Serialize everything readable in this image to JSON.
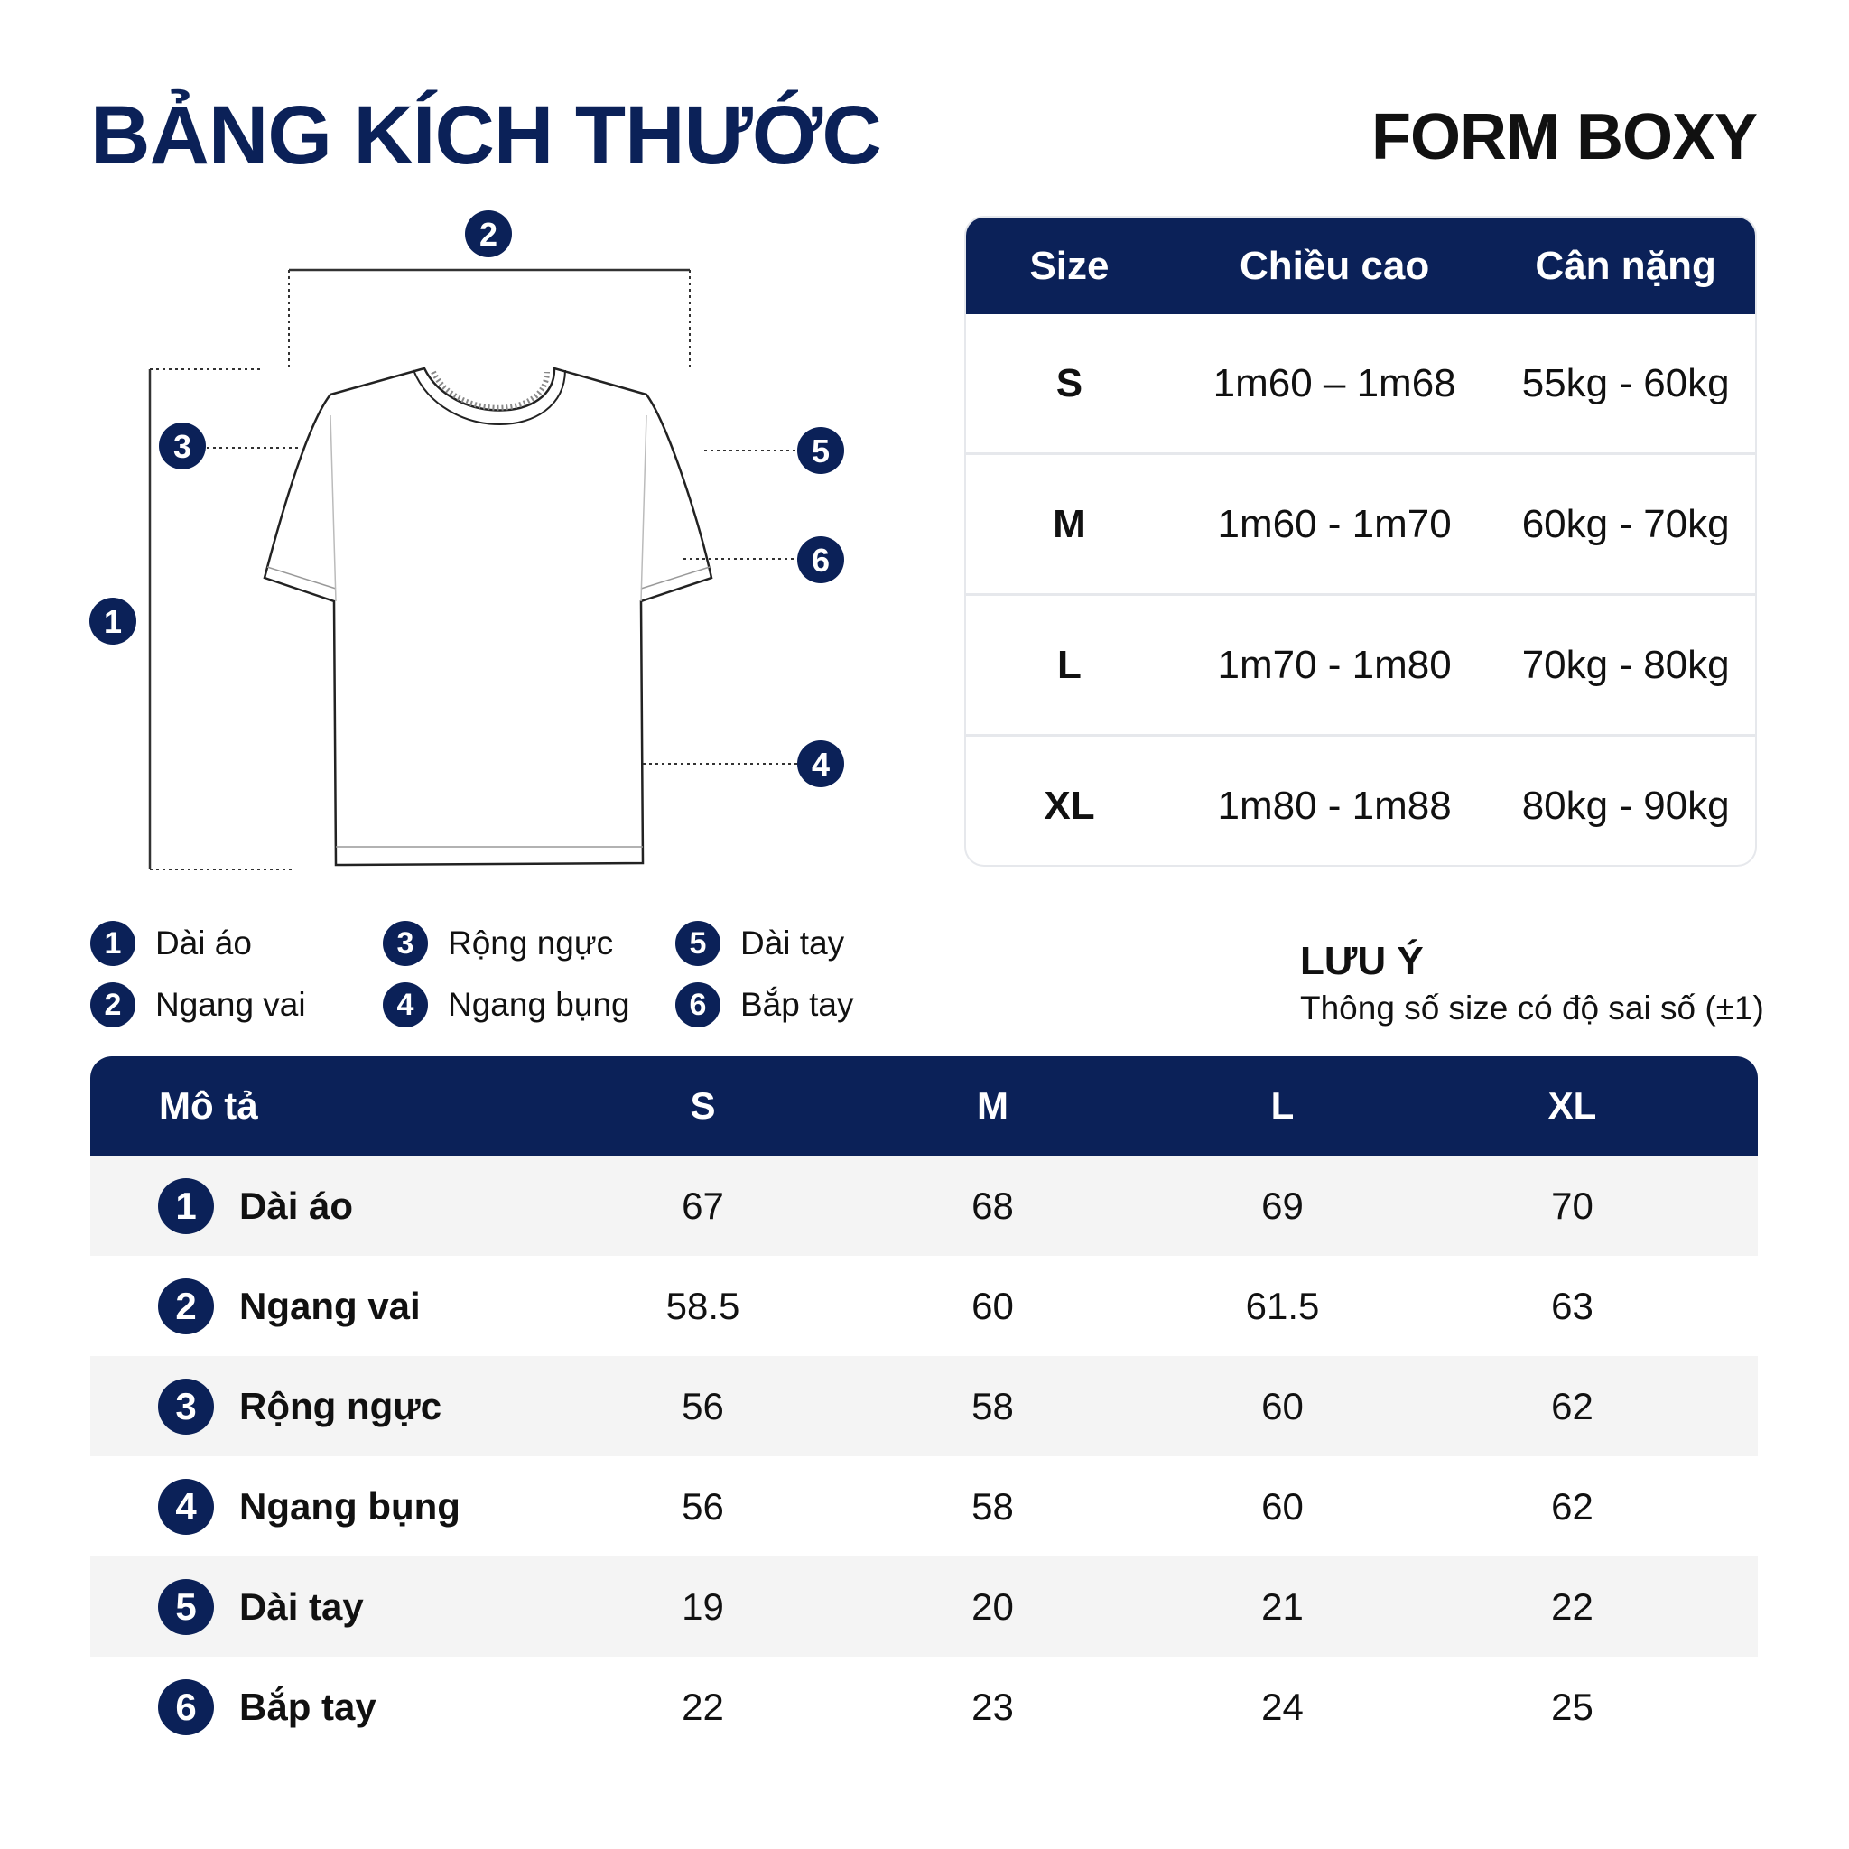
{
  "title": "BẢNG KÍCH THƯỚC",
  "form": "FORM BOXY",
  "colors": {
    "navy": "#0b2158",
    "stripe": "#f4f4f4"
  },
  "diagram": {
    "markers": [
      "1",
      "2",
      "3",
      "4",
      "5",
      "6"
    ]
  },
  "size_table": {
    "headers": [
      "Size",
      "Chiều cao",
      "Cân nặng"
    ],
    "rows": [
      [
        "S",
        "1m60 – 1m68",
        "55kg - 60kg"
      ],
      [
        "M",
        "1m60 - 1m70",
        "60kg - 70kg"
      ],
      [
        "L",
        "1m70 - 1m80",
        "70kg - 80kg"
      ],
      [
        "XL",
        "1m80 - 1m88",
        "80kg - 90kg"
      ]
    ]
  },
  "legend": [
    {
      "num": "1",
      "label": "Dài áo"
    },
    {
      "num": "2",
      "label": "Ngang vai"
    },
    {
      "num": "3",
      "label": "Rộng ngực"
    },
    {
      "num": "4",
      "label": "Ngang bụng"
    },
    {
      "num": "5",
      "label": "Dài tay"
    },
    {
      "num": "6",
      "label": "Bắp tay"
    }
  ],
  "note": {
    "title": "LƯU Ý",
    "text": "Thông số size có độ sai số (±1)"
  },
  "measure_table": {
    "headers": [
      "Mô tả",
      "S",
      "M",
      "L",
      "XL"
    ],
    "rows": [
      {
        "num": "1",
        "label": "Dài áo",
        "values": [
          "67",
          "68",
          "69",
          "70"
        ]
      },
      {
        "num": "2",
        "label": "Ngang vai",
        "values": [
          "58.5",
          "60",
          "61.5",
          "63"
        ]
      },
      {
        "num": "3",
        "label": "Rộng ngực",
        "values": [
          "56",
          "58",
          "60",
          "62"
        ]
      },
      {
        "num": "4",
        "label": "Ngang bụng",
        "values": [
          "56",
          "58",
          "60",
          "62"
        ]
      },
      {
        "num": "5",
        "label": "Dài tay",
        "values": [
          "19",
          "20",
          "21",
          "22"
        ]
      },
      {
        "num": "6",
        "label": "Bắp tay",
        "values": [
          "22",
          "23",
          "24",
          "25"
        ]
      }
    ]
  }
}
